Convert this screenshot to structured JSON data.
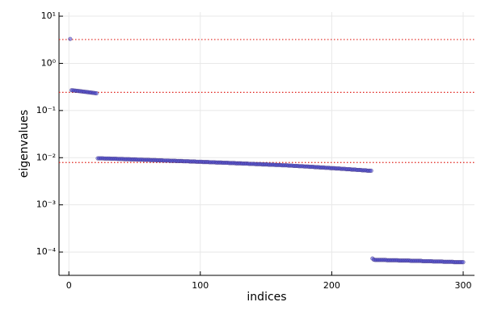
{
  "chart_data": {
    "type": "scatter",
    "xlabel": "indices",
    "ylabel": "eigenvalues",
    "xlim": [
      -7.5,
      308.6
    ],
    "xticks": [
      0,
      100,
      200,
      300
    ],
    "ylim": [
      3.2e-05,
      12.2
    ],
    "log_y": true,
    "grid": true,
    "yticks": [
      {
        "value": 10,
        "label": "10¹"
      },
      {
        "value": 1,
        "label": "10⁰"
      },
      {
        "value": 0.1,
        "label": "10⁻¹"
      },
      {
        "value": 0.01,
        "label": "10⁻²"
      },
      {
        "value": 0.001,
        "label": "10⁻³"
      },
      {
        "value": 0.0001,
        "label": "10⁻⁴"
      }
    ],
    "color": "#4a4ad0",
    "hlines": [
      3.2,
      0.243,
      0.0079
    ],
    "hline_color": "#e0201a",
    "x": [
      1,
      2,
      3,
      4,
      5,
      6,
      7,
      8,
      9,
      10,
      11,
      12,
      13,
      14,
      15,
      16,
      17,
      18,
      19,
      20,
      21,
      22,
      23,
      24,
      25,
      26,
      27,
      28,
      29,
      30,
      31,
      32,
      33,
      34,
      35,
      36,
      37,
      38,
      39,
      40,
      41,
      42,
      43,
      44,
      45,
      46,
      47,
      48,
      49,
      50,
      51,
      52,
      53,
      54,
      55,
      56,
      57,
      58,
      59,
      60,
      61,
      62,
      63,
      64,
      65,
      66,
      67,
      68,
      69,
      70,
      71,
      72,
      73,
      74,
      75,
      76,
      77,
      78,
      79,
      80,
      81,
      82,
      83,
      84,
      85,
      86,
      87,
      88,
      89,
      90,
      91,
      92,
      93,
      94,
      95,
      96,
      97,
      98,
      99,
      100,
      101,
      102,
      103,
      104,
      105,
      106,
      107,
      108,
      109,
      110,
      111,
      112,
      113,
      114,
      115,
      116,
      117,
      118,
      119,
      120,
      121,
      122,
      123,
      124,
      125,
      126,
      127,
      128,
      129,
      130,
      131,
      132,
      133,
      134,
      135,
      136,
      137,
      138,
      139,
      140,
      141,
      142,
      143,
      144,
      145,
      146,
      147,
      148,
      149,
      150,
      151,
      152,
      153,
      154,
      155,
      156,
      157,
      158,
      159,
      160,
      161,
      162,
      163,
      164,
      165,
      166,
      167,
      168,
      169,
      170,
      171,
      172,
      173,
      174,
      175,
      176,
      177,
      178,
      179,
      180,
      181,
      182,
      183,
      184,
      185,
      186,
      187,
      188,
      189,
      190,
      191,
      192,
      193,
      194,
      195,
      196,
      197,
      198,
      199,
      200,
      201,
      202,
      203,
      204,
      205,
      206,
      207,
      208,
      209,
      210,
      211,
      212,
      213,
      214,
      215,
      216,
      217,
      218,
      219,
      220,
      221,
      222,
      223,
      224,
      225,
      226,
      227,
      228,
      229,
      230,
      231,
      232,
      233,
      234,
      235,
      236,
      237,
      238,
      239,
      240,
      241,
      242,
      243,
      244,
      245,
      246,
      247,
      248,
      249,
      250,
      251,
      252,
      253,
      254,
      255,
      256,
      257,
      258,
      259,
      260,
      261,
      262,
      263,
      264,
      265,
      266,
      267,
      268,
      269,
      270,
      271,
      272,
      273,
      274,
      275,
      276,
      277,
      278,
      279,
      280,
      281,
      282,
      283,
      284,
      285,
      286,
      287,
      288,
      289,
      290,
      291,
      292,
      293,
      294,
      295,
      296,
      297,
      298,
      299,
      300
    ],
    "values": [
      3.3,
      0.27,
      0.268,
      0.266,
      0.264,
      0.262,
      0.26,
      0.258,
      0.256,
      0.254,
      0.252,
      0.25,
      0.248,
      0.246,
      0.244,
      0.242,
      0.24,
      0.238,
      0.236,
      0.234,
      0.232,
      0.0097,
      0.0097,
      0.0097,
      0.0097,
      0.0097,
      0.0096,
      0.0096,
      0.0096,
      0.0096,
      0.0096,
      0.0095,
      0.0095,
      0.0095,
      0.0095,
      0.0095,
      0.0094,
      0.0094,
      0.0094,
      0.0094,
      0.0094,
      0.0093,
      0.0093,
      0.0093,
      0.0093,
      0.0093,
      0.0092,
      0.0092,
      0.0092,
      0.0092,
      0.0092,
      0.0091,
      0.0091,
      0.0091,
      0.0091,
      0.0091,
      0.009,
      0.009,
      0.009,
      0.009,
      0.009,
      0.0089,
      0.0089,
      0.0089,
      0.0089,
      0.0089,
      0.0088,
      0.0088,
      0.0088,
      0.0088,
      0.0088,
      0.0087,
      0.0087,
      0.0087,
      0.0087,
      0.0087,
      0.0086,
      0.0086,
      0.0086,
      0.0086,
      0.0086,
      0.0085,
      0.0085,
      0.0085,
      0.0085,
      0.0085,
      0.0084,
      0.0084,
      0.0084,
      0.0084,
      0.0084,
      0.0083,
      0.0083,
      0.0083,
      0.0083,
      0.0083,
      0.0082,
      0.0082,
      0.0082,
      0.0082,
      0.0082,
      0.0081,
      0.0081,
      0.0081,
      0.0081,
      0.0081,
      0.008,
      0.008,
      0.008,
      0.008,
      0.008,
      0.0079,
      0.0079,
      0.0079,
      0.0079,
      0.0079,
      0.0078,
      0.0078,
      0.0078,
      0.0078,
      0.0078,
      0.0077,
      0.0077,
      0.0077,
      0.0077,
      0.0077,
      0.0076,
      0.0076,
      0.0076,
      0.0076,
      0.0076,
      0.0075,
      0.0075,
      0.0075,
      0.0075,
      0.0075,
      0.0074,
      0.0074,
      0.0074,
      0.0074,
      0.0074,
      0.0073,
      0.0073,
      0.0073,
      0.0073,
      0.0073,
      0.0072,
      0.0072,
      0.0072,
      0.0072,
      0.0072,
      0.0071,
      0.0071,
      0.0071,
      0.0071,
      0.0071,
      0.007,
      0.007,
      0.007,
      0.007,
      0.007,
      0.0069,
      0.0069,
      0.0069,
      0.0069,
      0.0069,
      0.0068,
      0.0068,
      0.0068,
      0.0068,
      0.0067,
      0.0067,
      0.0067,
      0.0067,
      0.0066,
      0.0066,
      0.0066,
      0.0066,
      0.0065,
      0.0065,
      0.0065,
      0.0065,
      0.0064,
      0.0064,
      0.0064,
      0.0064,
      0.0063,
      0.0063,
      0.0063,
      0.0063,
      0.0062,
      0.0062,
      0.0062,
      0.0062,
      0.0061,
      0.0061,
      0.0061,
      0.0061,
      0.006,
      0.006,
      0.006,
      0.006,
      0.0059,
      0.0059,
      0.0059,
      0.0059,
      0.0058,
      0.0058,
      0.0058,
      0.0058,
      0.0057,
      0.0057,
      0.0057,
      0.0057,
      0.0056,
      0.0056,
      0.0056,
      0.0056,
      0.0055,
      0.0055,
      0.0055,
      0.0055,
      0.0054,
      0.0054,
      0.0054,
      0.0054,
      0.0053,
      0.0053,
      0.0053,
      0.0053,
      7.3e-05,
      6.9e-05,
      6.8e-05,
      6.8e-05,
      6.8e-05,
      6.8e-05,
      6.8e-05,
      6.8e-05,
      6.8e-05,
      6.8e-05,
      6.8e-05,
      6.7e-05,
      6.7e-05,
      6.7e-05,
      6.7e-05,
      6.7e-05,
      6.7e-05,
      6.7e-05,
      6.7e-05,
      6.7e-05,
      6.6e-05,
      6.6e-05,
      6.6e-05,
      6.6e-05,
      6.6e-05,
      6.6e-05,
      6.6e-05,
      6.6e-05,
      6.6e-05,
      6.5e-05,
      6.5e-05,
      6.5e-05,
      6.5e-05,
      6.5e-05,
      6.5e-05,
      6.5e-05,
      6.5e-05,
      6.5e-05,
      6.4e-05,
      6.4e-05,
      6.4e-05,
      6.4e-05,
      6.4e-05,
      6.4e-05,
      6.4e-05,
      6.4e-05,
      6.3e-05,
      6.3e-05,
      6.3e-05,
      6.3e-05,
      6.3e-05,
      6.3e-05,
      6.3e-05,
      6.3e-05,
      6.2e-05,
      6.2e-05,
      6.2e-05,
      6.2e-05,
      6.2e-05,
      6.2e-05,
      6.2e-05,
      6.2e-05,
      6.1e-05,
      6.1e-05,
      6.1e-05,
      6.1e-05,
      6.1e-05,
      6.1e-05,
      6.1e-05,
      6.1e-05
    ]
  }
}
